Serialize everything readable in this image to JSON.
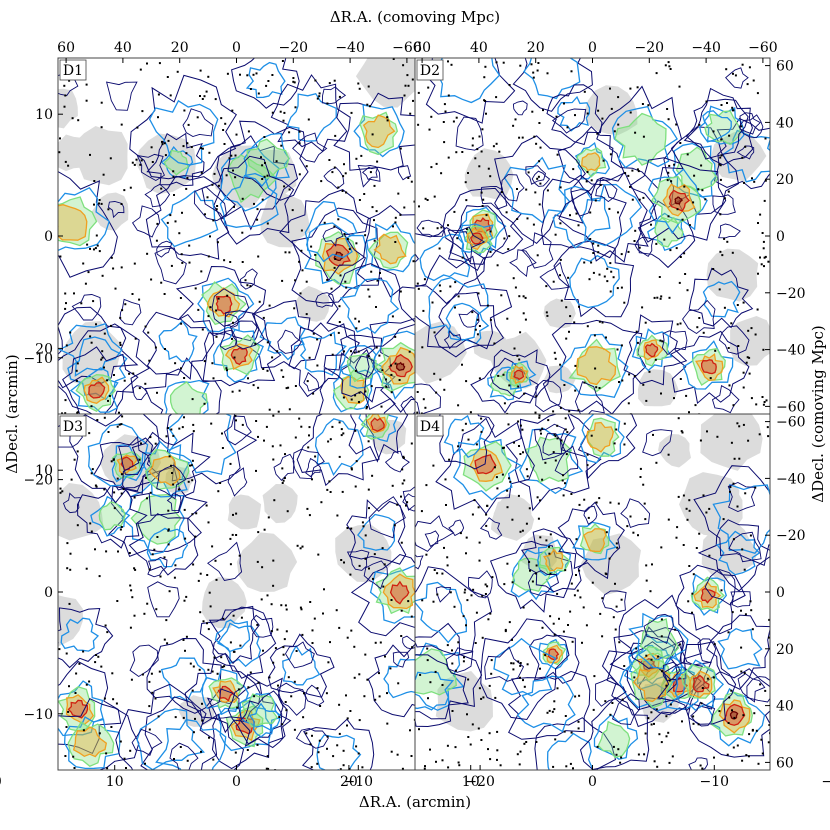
{
  "axes_titles": {
    "top": "ΔR.A. (comoving Mpc)",
    "bottom": "ΔR.A. (arcmin)",
    "left": "ΔDecl. (arcmin)",
    "right": "ΔDecl. (comoving Mpc)"
  },
  "chart_data": {
    "type": "contour",
    "panels": [
      {
        "name": "D1",
        "position": "top-left"
      },
      {
        "name": "D2",
        "position": "top-right"
      },
      {
        "name": "D3",
        "position": "bottom-left"
      },
      {
        "name": "D4",
        "position": "bottom-right"
      }
    ],
    "x_arcmin_ticks": [
      20,
      10,
      0,
      -10,
      -20
    ],
    "x_arcmin_tick_labels": [
      "20",
      "10",
      "0",
      "−10",
      "−20"
    ],
    "x_arcmin_range": [
      29,
      -29
    ],
    "x_mpc_ticks_left": [
      60,
      40,
      20,
      0,
      -20,
      -40,
      -60
    ],
    "x_mpc_tick_labels_left": [
      "60",
      "40",
      "20",
      "0",
      "−20",
      "−40",
      "−60"
    ],
    "x_mpc_ticks_right": [
      60,
      40,
      20,
      0,
      -20,
      -40,
      -60
    ],
    "x_mpc_tick_labels_right": [
      "60",
      "40",
      "20",
      "0",
      "−20",
      "−40",
      "−60"
    ],
    "y_arcmin_ticks": [
      20,
      10,
      0,
      -10,
      -20
    ],
    "y_arcmin_tick_labels": [
      "20",
      "10",
      "0",
      "−10",
      "−20"
    ],
    "y_arcmin_range": [
      -29,
      29
    ],
    "y_mpc_ticks_top": [
      60,
      40,
      20,
      0,
      -20,
      -40,
      -60
    ],
    "y_mpc_tick_labels_top": [
      "60",
      "40",
      "20",
      "0",
      "−20",
      "−40",
      "−60"
    ],
    "y_mpc_ticks_bottom": [
      -60,
      -40,
      -20,
      0,
      20,
      40,
      60
    ],
    "y_mpc_tick_labels_bottom": [
      "−60",
      "−40",
      "−20",
      "0",
      "20",
      "40",
      "60"
    ],
    "contour_colors": [
      "#0a0a6e",
      "#1e8fe6",
      "#7ee07e",
      "#f0a020",
      "#d02010",
      "#6a0000"
    ],
    "mask_color": "#dcdcdc",
    "points_color": "#000000"
  }
}
